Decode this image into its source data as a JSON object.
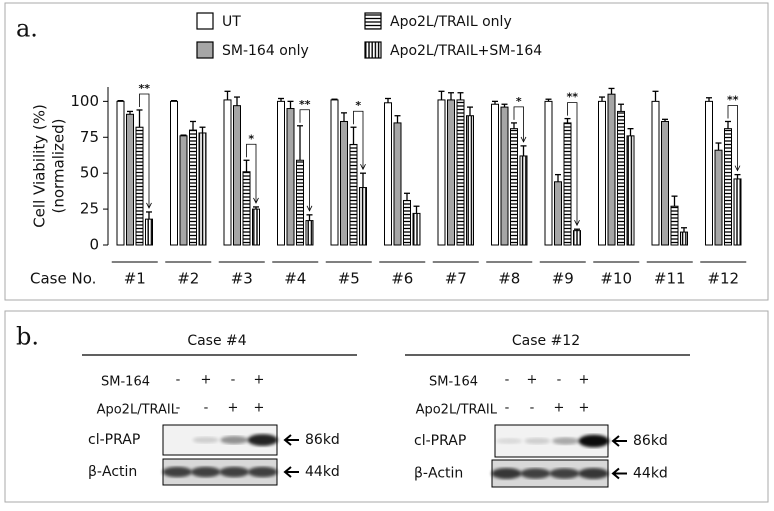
{
  "panel_a_label": "a.",
  "panel_b_label": "b.",
  "chart_data": {
    "type": "bar",
    "ylabel": [
      "Cell Viability (%)",
      "(normalized)"
    ],
    "xlabel": "Case No.",
    "categories": [
      "#1",
      "#2",
      "#3",
      "#4",
      "#5",
      "#6",
      "#7",
      "#8",
      "#9",
      "#10",
      "#11",
      "#12"
    ],
    "series": [
      {
        "name": "UT",
        "color": "#ffffff",
        "pattern": "none",
        "values": [
          100,
          100,
          101,
          100,
          101,
          99,
          101,
          98,
          100,
          100,
          100,
          100
        ],
        "errors": [
          0.5,
          0.5,
          6,
          2,
          0.5,
          3,
          6,
          2,
          1.5,
          3,
          7,
          2.5
        ]
      },
      {
        "name": "SM-164 only",
        "color": "#a6a6a6",
        "pattern": "none",
        "values": [
          91,
          76,
          97,
          95,
          86,
          85,
          101,
          96,
          44,
          105,
          86,
          66
        ],
        "errors": [
          2,
          0.5,
          6,
          5,
          6,
          5,
          5,
          2,
          5,
          4,
          1.5,
          5
        ]
      },
      {
        "name": "Apo2L/TRAIL only",
        "color": "#ffffff",
        "pattern": "horizontal",
        "values": [
          82,
          80,
          51,
          59,
          70,
          31,
          101,
          81,
          85,
          93,
          27,
          81
        ],
        "errors": [
          12,
          6,
          8,
          24,
          12,
          5,
          5,
          4,
          3,
          5,
          7,
          5
        ]
      },
      {
        "name": "Apo2L/TRAIL+SM-164",
        "color": "#ffffff",
        "pattern": "vertical",
        "values": [
          18,
          78,
          25,
          17,
          40,
          22,
          90,
          62,
          10,
          76,
          9,
          46
        ],
        "errors": [
          5,
          4,
          1.5,
          4,
          10,
          5,
          6,
          7,
          1,
          5,
          3,
          3
        ]
      }
    ],
    "significance": [
      "**",
      null,
      "*",
      "**",
      "*",
      null,
      null,
      "*",
      "**",
      null,
      null,
      "**"
    ],
    "ylim": [
      0,
      110
    ],
    "yticks": [
      0,
      25,
      50,
      75,
      100
    ]
  },
  "panel_b": {
    "blots": [
      {
        "title": "Case #4",
        "treatments": [
          {
            "name": "SM-164",
            "signs": [
              "-",
              "+",
              "-",
              "+"
            ]
          },
          {
            "name": "Apo2L/TRAIL",
            "signs": [
              "-",
              "-",
              "+",
              "+"
            ]
          }
        ],
        "bands": [
          {
            "name": "cl-PRAP",
            "size": "86kd"
          },
          {
            "name": "β-Actin",
            "size": "44kd"
          }
        ]
      },
      {
        "title": "Case #12",
        "treatments": [
          {
            "name": "SM-164",
            "signs": [
              "-",
              "+",
              "-",
              "+"
            ]
          },
          {
            "name": "Apo2L/TRAIL",
            "signs": [
              "-",
              "-",
              "+",
              "+"
            ]
          }
        ],
        "bands": [
          {
            "name": "cl-PRAP",
            "size": "86kd"
          },
          {
            "name": "β-Actin",
            "size": "44kd"
          }
        ]
      }
    ]
  }
}
